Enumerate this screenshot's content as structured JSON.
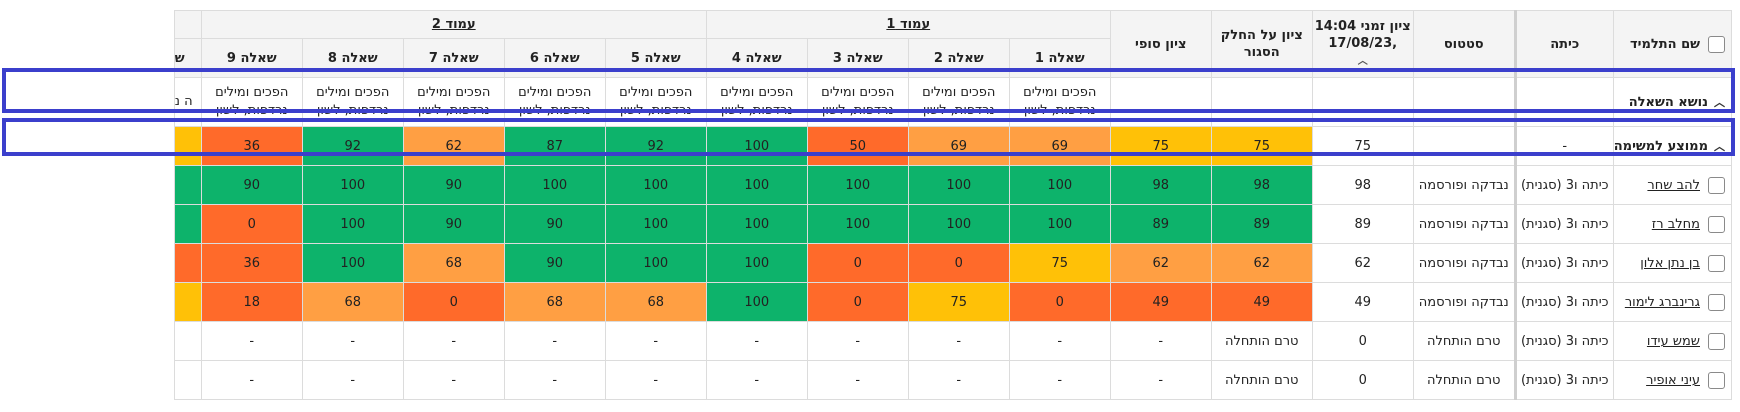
{
  "headers": {
    "name": "שם התלמיד",
    "class": "כיתה",
    "status": "סטטוס",
    "timed_grade": "ציון זמני 14:04 ,17/08/23",
    "closed_part_grade": "ציון על החלק הסגור",
    "final_grade": "ציון סופי",
    "sort_icon": "chevron-up-icon",
    "page1": "עמוד 1",
    "page2": "עמוד 2",
    "questions": [
      "שאלה 1",
      "שאלה 2",
      "שאלה 3",
      "שאלה 4",
      "שאלה 5",
      "שאלה 6",
      "שאלה 7",
      "שאלה 8",
      "שאלה 9"
    ],
    "partial_next": "ש"
  },
  "topic_row": {
    "label": "נושא השאלה",
    "topic": "הפכים ומילים נרדפות, לשון",
    "partial": "ה נ"
  },
  "average_row": {
    "label": "ממוצע למשימה",
    "class": "-",
    "status": "",
    "timed": "75",
    "closed": "75",
    "final": "75",
    "q": [
      "69",
      "69",
      "50",
      "100",
      "92",
      "87",
      "62",
      "92",
      "36"
    ]
  },
  "students": [
    {
      "name": "להב שחר",
      "class": "כיתה ו3 (סגנית)",
      "status": "נבדקה ופורסמה",
      "timed": "98",
      "closed": "98",
      "final": "98",
      "q": [
        "100",
        "100",
        "100",
        "100",
        "100",
        "100",
        "90",
        "100",
        "90"
      ]
    },
    {
      "name": "מחלב רז",
      "class": "כיתה ו3 (סגנית)",
      "status": "נבדקה ופורסמה",
      "timed": "89",
      "closed": "89",
      "final": "89",
      "q": [
        "100",
        "100",
        "100",
        "100",
        "100",
        "90",
        "90",
        "100",
        "0"
      ]
    },
    {
      "name": "בן נתן אלון",
      "class": "כיתה ו3 (סגנית)",
      "status": "נבדקה ופורסמה",
      "timed": "62",
      "closed": "62",
      "final": "62",
      "q": [
        "75",
        "0",
        "0",
        "100",
        "100",
        "90",
        "68",
        "100",
        "36"
      ]
    },
    {
      "name": "גרינברג לימור",
      "class": "כיתה ו3 (סגנית)",
      "status": "נבדקה ופורסמה",
      "timed": "49",
      "closed": "49",
      "final": "49",
      "q": [
        "0",
        "75",
        "0",
        "100",
        "68",
        "68",
        "0",
        "68",
        "18"
      ]
    },
    {
      "name": "שמש עידו",
      "class": "כיתה ו3 (סגנית)",
      "status": "טרם הותחלה",
      "timed": "0",
      "closed": "טרם הותחלה",
      "final": "-",
      "q": [
        "-",
        "-",
        "-",
        "-",
        "-",
        "-",
        "-",
        "-",
        "-"
      ]
    },
    {
      "name": "עיני אופיר",
      "class": "כיתה ו3 (סגנית)",
      "status": "טרם הותחלה",
      "timed": "0",
      "closed": "טרם הותחלה",
      "final": "-",
      "q": [
        "-",
        "-",
        "-",
        "-",
        "-",
        "-",
        "-",
        "-",
        "-"
      ]
    }
  ],
  "colors": {
    "green": "#0db36b",
    "yellow": "#ffc107",
    "orange": "#ff9f43",
    "red": "#ff6a2a",
    "highlight": "#3b3fcc"
  },
  "classes": {
    "average": {
      "closed": "y",
      "final": "y",
      "q": [
        "o",
        "o",
        "r",
        "g",
        "g",
        "g",
        "o",
        "g",
        "r"
      ],
      "partial": "y"
    },
    "students": [
      {
        "closed": "g",
        "final": "g",
        "q": [
          "g",
          "g",
          "g",
          "g",
          "g",
          "g",
          "g",
          "g",
          "g"
        ],
        "partial": "g"
      },
      {
        "closed": "g",
        "final": "g",
        "q": [
          "g",
          "g",
          "g",
          "g",
          "g",
          "g",
          "g",
          "g",
          "r"
        ],
        "partial": "g"
      },
      {
        "closed": "o",
        "final": "o",
        "q": [
          "y",
          "r",
          "r",
          "g",
          "g",
          "g",
          "o",
          "g",
          "r"
        ],
        "partial": "r"
      },
      {
        "closed": "r",
        "final": "r",
        "q": [
          "r",
          "y",
          "r",
          "g",
          "o",
          "o",
          "r",
          "o",
          "r"
        ],
        "partial": "y"
      },
      {
        "closed": "",
        "final": "",
        "q": [
          "",
          "",
          "",
          "",
          "",
          "",
          "",
          "",
          ""
        ],
        "partial": ""
      },
      {
        "closed": "",
        "final": "",
        "q": [
          "",
          "",
          "",
          "",
          "",
          "",
          "",
          "",
          ""
        ],
        "partial": ""
      }
    ]
  }
}
